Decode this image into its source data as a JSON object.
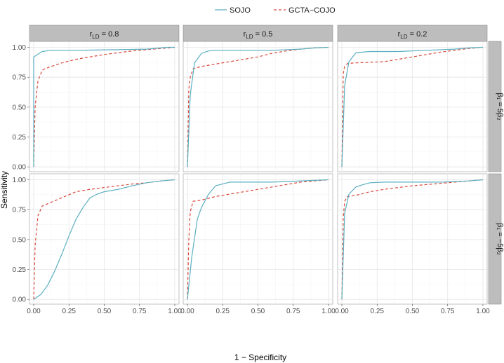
{
  "chart_data": {
    "type": "line",
    "xlabel": "1 − Specificity",
    "ylabel": "Sensitivity",
    "xlim": [
      -0.03,
      1.03
    ],
    "ylim": [
      -0.04,
      1.05
    ],
    "x_ticks": [
      "0.00",
      "0.25",
      "0.50",
      "0.75",
      "1.00"
    ],
    "x_tick_values": [
      0,
      0.25,
      0.5,
      0.75,
      1
    ],
    "y_ticks": [
      "0.00",
      "0.25",
      "0.50",
      "0.75",
      "1.00"
    ],
    "y_tick_values": [
      0,
      0.25,
      0.5,
      0.75,
      1
    ],
    "grid": true,
    "legend": {
      "position": "top",
      "entries": [
        {
          "name": "SOJO",
          "color": "#5aafc0",
          "dash": "solid"
        },
        {
          "name": "GCTA−COJO",
          "color": "#d9483b",
          "dash": "dashed"
        }
      ]
    },
    "col_facets": [
      {
        "label_main": "r",
        "label_sub": "LD",
        "label_value": " = 0.8"
      },
      {
        "label_main": "r",
        "label_sub": "LD",
        "label_value": " = 0.5"
      },
      {
        "label_main": "r",
        "label_sub": "LD",
        "label_value": " = 0.2"
      }
    ],
    "row_facets": [
      {
        "label": "β₁ = 5β₂"
      },
      {
        "label": "β₁ = −5β₂"
      }
    ],
    "panels": [
      {
        "row": 0,
        "col": 0,
        "series": [
          {
            "name": "SOJO",
            "x": [
              0.0,
              0.0,
              0.06,
              0.12,
              0.3,
              0.6,
              0.8,
              0.95,
              1.0
            ],
            "y": [
              0.0,
              0.92,
              0.965,
              0.975,
              0.975,
              0.98,
              0.985,
              1.0,
              1.0
            ]
          },
          {
            "name": "GCTA−COJO",
            "x": [
              0.0,
              0.01,
              0.03,
              0.06,
              0.1,
              0.2,
              0.3,
              0.4,
              0.5,
              0.6,
              0.7,
              0.8,
              0.9,
              1.0
            ],
            "y": [
              0.0,
              0.5,
              0.72,
              0.81,
              0.83,
              0.87,
              0.9,
              0.92,
              0.94,
              0.955,
              0.97,
              0.98,
              0.99,
              1.0
            ]
          }
        ]
      },
      {
        "row": 0,
        "col": 1,
        "series": [
          {
            "name": "SOJO",
            "x": [
              0.0,
              0.02,
              0.05,
              0.1,
              0.15,
              0.2,
              0.4,
              0.6,
              0.8,
              0.9,
              1.0
            ],
            "y": [
              0.0,
              0.6,
              0.87,
              0.95,
              0.97,
              0.975,
              0.975,
              0.975,
              0.985,
              0.995,
              1.0
            ]
          },
          {
            "name": "GCTA−COJO",
            "x": [
              0.0,
              0.01,
              0.02,
              0.04,
              0.1,
              0.2,
              0.3,
              0.4,
              0.5,
              0.6,
              0.7,
              0.8,
              0.9,
              1.0
            ],
            "y": [
              0.0,
              0.65,
              0.75,
              0.82,
              0.84,
              0.86,
              0.88,
              0.9,
              0.92,
              0.95,
              0.97,
              0.985,
              0.995,
              1.0
            ]
          }
        ]
      },
      {
        "row": 0,
        "col": 2,
        "series": [
          {
            "name": "SOJO",
            "x": [
              0.0,
              0.02,
              0.05,
              0.1,
              0.2,
              0.4,
              0.6,
              0.8,
              0.9,
              1.0
            ],
            "y": [
              0.0,
              0.68,
              0.88,
              0.955,
              0.965,
              0.965,
              0.975,
              0.985,
              0.995,
              1.0
            ]
          },
          {
            "name": "GCTA−COJO",
            "x": [
              0.0,
              0.01,
              0.02,
              0.04,
              0.1,
              0.2,
              0.3,
              0.4,
              0.5,
              0.6,
              0.7,
              0.8,
              0.9,
              1.0
            ],
            "y": [
              0.0,
              0.78,
              0.84,
              0.865,
              0.87,
              0.875,
              0.88,
              0.9,
              0.92,
              0.94,
              0.96,
              0.975,
              0.99,
              1.0
            ]
          }
        ]
      },
      {
        "row": 1,
        "col": 0,
        "series": [
          {
            "name": "SOJO",
            "x": [
              0.0,
              0.05,
              0.1,
              0.15,
              0.2,
              0.25,
              0.3,
              0.35,
              0.4,
              0.45,
              0.5,
              0.55,
              0.6,
              0.7,
              0.8,
              0.9,
              1.0
            ],
            "y": [
              0.0,
              0.04,
              0.12,
              0.24,
              0.38,
              0.53,
              0.67,
              0.77,
              0.85,
              0.88,
              0.9,
              0.91,
              0.92,
              0.95,
              0.975,
              0.99,
              1.0
            ]
          },
          {
            "name": "GCTA−COJO",
            "x": [
              0.0,
              0.01,
              0.03,
              0.06,
              0.1,
              0.2,
              0.3,
              0.4,
              0.5,
              0.6,
              0.7,
              0.8,
              0.9,
              1.0
            ],
            "y": [
              0.0,
              0.45,
              0.7,
              0.78,
              0.8,
              0.85,
              0.9,
              0.92,
              0.935,
              0.95,
              0.965,
              0.975,
              0.99,
              1.0
            ]
          }
        ]
      },
      {
        "row": 1,
        "col": 1,
        "series": [
          {
            "name": "SOJO",
            "x": [
              0.0,
              0.03,
              0.07,
              0.1,
              0.15,
              0.2,
              0.3,
              0.5,
              0.6,
              0.7,
              0.8,
              0.9,
              1.0
            ],
            "y": [
              0.0,
              0.35,
              0.67,
              0.77,
              0.88,
              0.95,
              0.98,
              0.98,
              0.98,
              0.985,
              0.99,
              0.995,
              1.0
            ]
          },
          {
            "name": "GCTA−COJO",
            "x": [
              0.0,
              0.01,
              0.02,
              0.04,
              0.1,
              0.2,
              0.3,
              0.4,
              0.5,
              0.6,
              0.7,
              0.8,
              0.9,
              1.0
            ],
            "y": [
              0.0,
              0.5,
              0.73,
              0.82,
              0.83,
              0.86,
              0.88,
              0.9,
              0.92,
              0.94,
              0.96,
              0.98,
              0.99,
              1.0
            ]
          }
        ]
      },
      {
        "row": 1,
        "col": 2,
        "series": [
          {
            "name": "SOJO",
            "x": [
              0.0,
              0.02,
              0.05,
              0.1,
              0.15,
              0.2,
              0.3,
              0.5,
              0.7,
              0.8,
              0.9,
              1.0
            ],
            "y": [
              0.0,
              0.72,
              0.88,
              0.94,
              0.96,
              0.975,
              0.98,
              0.98,
              0.98,
              0.985,
              0.99,
              1.0
            ]
          },
          {
            "name": "GCTA−COJO",
            "x": [
              0.0,
              0.01,
              0.02,
              0.04,
              0.1,
              0.2,
              0.3,
              0.4,
              0.5,
              0.6,
              0.7,
              0.8,
              0.9,
              1.0
            ],
            "y": [
              0.0,
              0.68,
              0.82,
              0.86,
              0.87,
              0.9,
              0.92,
              0.935,
              0.95,
              0.96,
              0.97,
              0.98,
              0.99,
              1.0
            ]
          }
        ]
      }
    ]
  }
}
